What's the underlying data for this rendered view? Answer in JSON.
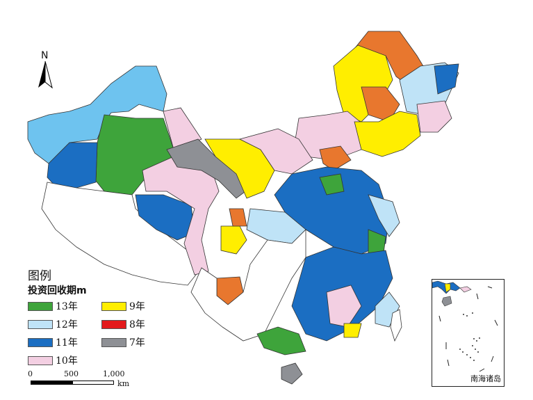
{
  "legend": {
    "title": "图例",
    "subtitle": "投资回收期m",
    "items": [
      {
        "label": "13年",
        "color": "#3ea43b"
      },
      {
        "label": "9年",
        "color": "#ffee00"
      },
      {
        "label": "12年",
        "color": "#bfe3f7"
      },
      {
        "label": "8年",
        "color": "#e31a1c"
      },
      {
        "label": "11年",
        "color": "#1b6ec2"
      },
      {
        "label": "7年",
        "color": "#8e9095"
      },
      {
        "label": "10年",
        "color": "#f3cfe2"
      }
    ]
  },
  "scale": {
    "labels": [
      "0",
      "500",
      "1,000"
    ],
    "unit": "km"
  },
  "north": {
    "label": "N"
  },
  "inset": {
    "label": "南海诸岛"
  },
  "colors": {
    "orange": "#e8772e",
    "sky": "#6ec3ef",
    "unmapped": "#ffffff",
    "border": "#333333"
  }
}
